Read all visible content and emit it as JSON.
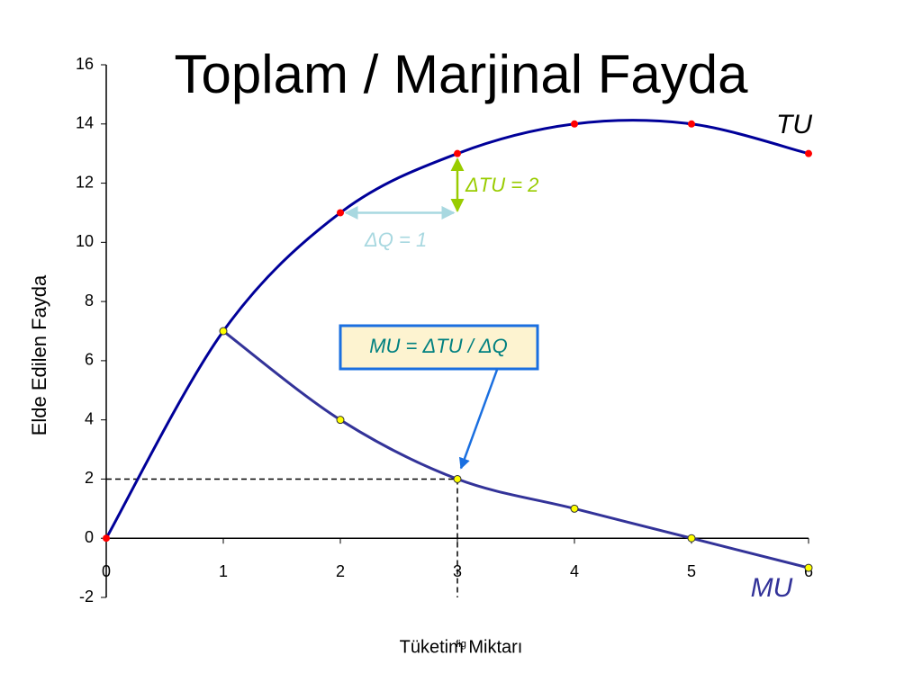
{
  "chart_data": {
    "type": "line",
    "title": "Toplam / Marjinal Fayda",
    "x_label": "Tüketim Miktarı",
    "y_label": "Elde Edilen Fayda",
    "series": [
      {
        "name": "TU",
        "color": "#000099",
        "marker_color": "#ff0000",
        "x": [
          0,
          1,
          2,
          3,
          4,
          5,
          6
        ],
        "values": [
          0,
          7,
          11,
          13,
          14,
          14,
          13
        ]
      },
      {
        "name": "MU",
        "color": "#333399",
        "marker_color": "#ffff00",
        "x": [
          1,
          2,
          3,
          4,
          5,
          6
        ],
        "values": [
          7,
          4,
          2,
          1,
          0,
          -1
        ]
      }
    ],
    "annotations": [
      "ΔTU = 2",
      "ΔQ = 1",
      "MU = ΔTU / ΔQ",
      "fig"
    ],
    "xlim": [
      0,
      6
    ],
    "xticks": [
      0,
      1,
      2,
      3,
      4,
      5,
      6
    ],
    "ylim": [
      -2,
      16
    ],
    "yticks": [
      -2,
      0,
      2,
      4,
      6,
      8,
      10,
      12,
      14,
      16
    ],
    "grid": false
  }
}
